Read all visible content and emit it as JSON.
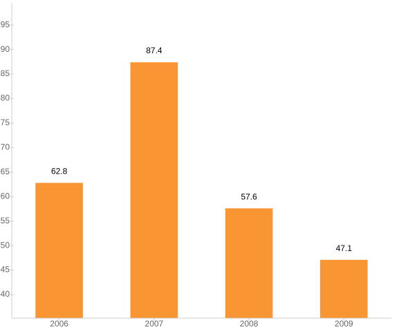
{
  "chart_data": {
    "type": "bar",
    "categories": [
      "2006",
      "2007",
      "2008",
      "2009"
    ],
    "values": [
      62.8,
      87.4,
      57.6,
      47.1
    ],
    "color": "#f99532",
    "ylim": [
      35.2,
      99.4
    ],
    "yticks": [
      40,
      45,
      50,
      55,
      60,
      65,
      70,
      75,
      80,
      85,
      90,
      95
    ],
    "grid": false
  }
}
